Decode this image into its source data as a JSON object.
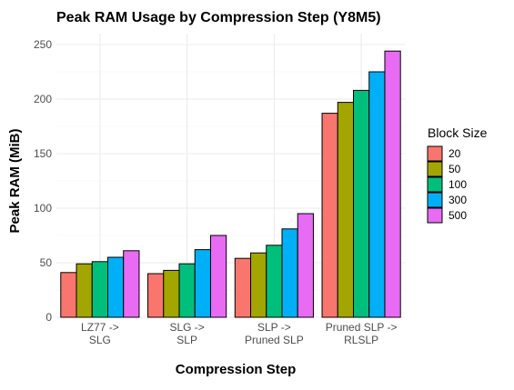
{
  "chart_data": {
    "type": "bar",
    "title": "Peak RAM Usage by Compression Step (Y8M5)",
    "xlabel": "Compression Step",
    "ylabel": "Peak RAM (MiB)",
    "ylim": [
      0,
      260
    ],
    "yticks": [
      0,
      50,
      100,
      150,
      200,
      250
    ],
    "grid": true,
    "legend_title": "Block Size",
    "legend_position": "right",
    "categories": [
      [
        "LZ77 ->",
        "SLG"
      ],
      [
        "SLG ->",
        "SLP"
      ],
      [
        "SLP ->",
        "Pruned SLP"
      ],
      [
        "Pruned SLP ->",
        "RLSLP"
      ]
    ],
    "series": [
      {
        "name": "20",
        "color": "#F8766D",
        "values": [
          41,
          40,
          54,
          187
        ]
      },
      {
        "name": "50",
        "color": "#A3A500",
        "values": [
          49,
          43,
          59,
          197
        ]
      },
      {
        "name": "100",
        "color": "#00BF7D",
        "values": [
          51,
          49,
          66,
          208
        ]
      },
      {
        "name": "300",
        "color": "#00B0F6",
        "values": [
          55,
          62,
          81,
          225
        ]
      },
      {
        "name": "500",
        "color": "#E76BF3",
        "values": [
          61,
          75,
          95,
          244
        ]
      }
    ]
  }
}
